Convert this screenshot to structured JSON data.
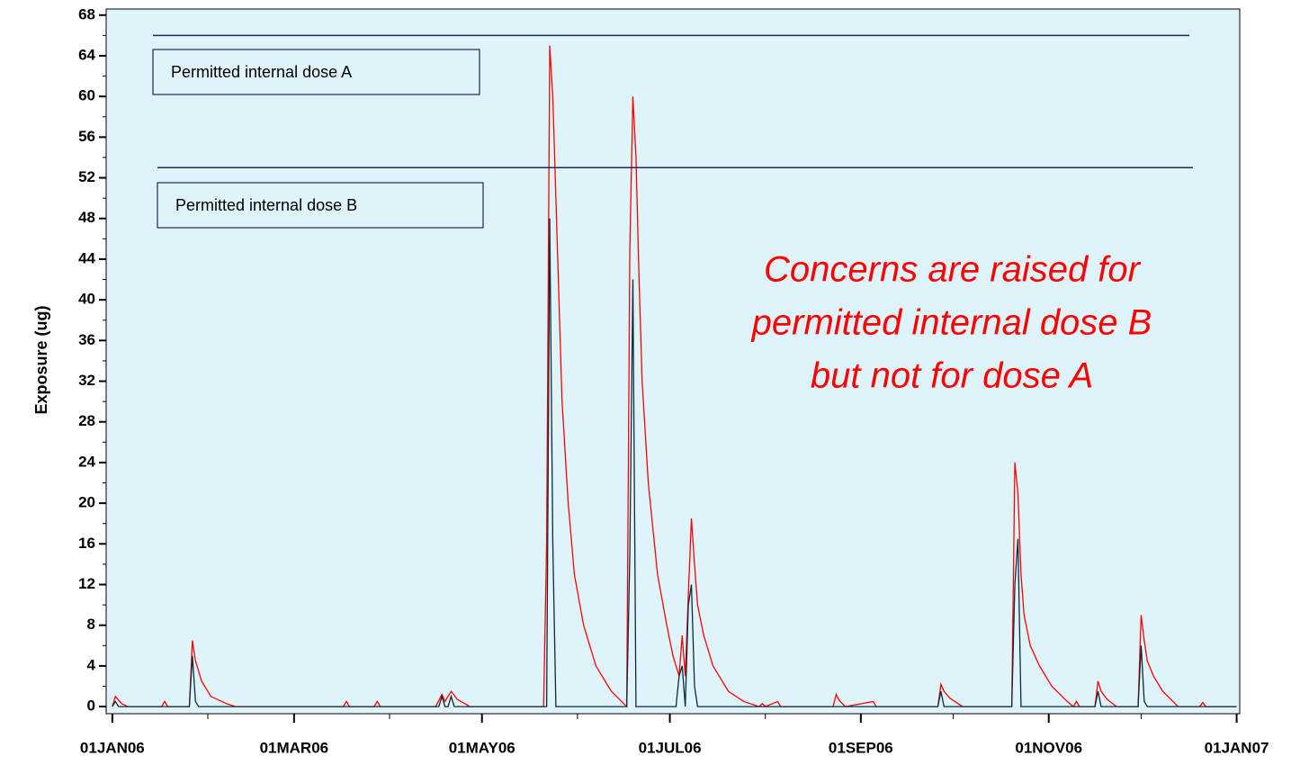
{
  "chart_data": {
    "type": "line",
    "y_label": "Exposure (ug)",
    "xlim": [
      "2005-12-30",
      "2007-01-02"
    ],
    "ylim": [
      -0.7,
      68.6
    ],
    "xticks": [
      {
        "value": "2006-01-01",
        "label": "01JAN06"
      },
      {
        "value": "2006-03-01",
        "label": "01MAR06"
      },
      {
        "value": "2006-05-01",
        "label": "01MAY06"
      },
      {
        "value": "2006-07-01",
        "label": "01JUL06"
      },
      {
        "value": "2006-09-01",
        "label": "01SEP06"
      },
      {
        "value": "2006-11-01",
        "label": "01NOV06"
      },
      {
        "value": "2007-01-01",
        "label": "01JAN07"
      }
    ],
    "xminorticks": [
      "2006-02-01",
      "2006-04-01",
      "2006-06-01",
      "2006-08-01",
      "2006-10-01",
      "2006-12-01"
    ],
    "yticks": [
      0,
      4,
      8,
      12,
      16,
      20,
      24,
      28,
      32,
      36,
      40,
      44,
      48,
      52,
      56,
      60,
      64,
      68
    ],
    "yminorticks": [
      2,
      6,
      10,
      14,
      18,
      22,
      26,
      30,
      34,
      38,
      42,
      46,
      50,
      54,
      58,
      62,
      66
    ],
    "background": "#dff3fb",
    "reference_lines": [
      {
        "label": "Permitted internal dose A",
        "value": 66,
        "color": "#1a2a5a"
      },
      {
        "label": "Permitted internal dose B",
        "value": 53,
        "color": "#1a2a5a"
      }
    ],
    "annotation": {
      "lines": [
        "Concerns are raised for",
        "permitted internal dose B",
        "but not for dose A"
      ],
      "color": "#ff0000"
    },
    "series": [
      {
        "color": "#ff0000",
        "x": [
          "2006-01-01",
          "2006-01-02",
          "2006-01-04",
          "2006-01-06",
          "2006-01-17",
          "2006-01-18",
          "2006-01-19",
          "2006-01-26",
          "2006-01-27",
          "2006-01-28",
          "2006-01-30",
          "2006-02-02",
          "2006-02-07",
          "2006-02-10",
          "2006-03-17",
          "2006-03-18",
          "2006-03-19",
          "2006-03-27",
          "2006-03-28",
          "2006-03-29",
          "2006-04-16",
          "2006-04-18",
          "2006-04-19",
          "2006-04-21",
          "2006-04-23",
          "2006-04-26",
          "2006-04-27",
          "2006-05-21",
          "2006-05-22",
          "2006-05-23",
          "2006-05-24",
          "2006-05-25",
          "2006-05-26",
          "2006-05-27",
          "2006-05-29",
          "2006-05-31",
          "2006-06-03",
          "2006-06-07",
          "2006-06-12",
          "2006-06-16",
          "2006-06-17",
          "2006-06-18",
          "2006-06-19",
          "2006-06-20",
          "2006-06-21",
          "2006-06-22",
          "2006-06-24",
          "2006-06-27",
          "2006-06-30",
          "2006-07-02",
          "2006-07-04",
          "2006-07-05",
          "2006-07-06",
          "2006-07-07",
          "2006-07-08",
          "2006-07-09",
          "2006-07-10",
          "2006-07-12",
          "2006-07-15",
          "2006-07-20",
          "2006-07-25",
          "2006-07-30",
          "2006-07-31",
          "2006-08-01",
          "2006-08-05",
          "2006-08-06",
          "2006-08-23",
          "2006-08-24",
          "2006-08-25",
          "2006-08-27",
          "2006-09-05",
          "2006-09-06",
          "2006-09-26",
          "2006-09-27",
          "2006-09-28",
          "2006-09-30",
          "2006-10-03",
          "2006-10-04",
          "2006-10-20",
          "2006-10-21",
          "2006-10-22",
          "2006-10-23",
          "2006-10-24",
          "2006-10-26",
          "2006-10-29",
          "2006-11-02",
          "2006-11-07",
          "2006-11-09",
          "2006-11-10",
          "2006-11-11",
          "2006-11-16",
          "2006-11-17",
          "2006-11-18",
          "2006-11-20",
          "2006-11-23",
          "2006-11-30",
          "2006-12-01",
          "2006-12-02",
          "2006-12-03",
          "2006-12-05",
          "2006-12-08",
          "2006-12-12",
          "2006-12-13",
          "2006-12-20",
          "2006-12-21",
          "2006-12-22",
          "2007-01-01"
        ],
        "values": [
          0,
          1,
          0.3,
          0,
          0,
          0.5,
          0,
          0,
          6.5,
          4.5,
          2.5,
          1,
          0.3,
          0,
          0,
          0.5,
          0,
          0,
          0.5,
          0,
          0,
          1.2,
          0.5,
          1.5,
          0.7,
          0.2,
          0,
          0,
          16,
          65,
          60,
          50,
          40,
          30,
          20,
          13,
          8,
          4,
          1.5,
          0.3,
          0,
          45,
          60,
          54,
          42,
          32,
          22,
          13,
          8,
          5,
          3,
          7,
          3,
          11,
          18.5,
          14,
          10,
          7,
          4,
          1.5,
          0.5,
          0,
          0.3,
          0,
          0.5,
          0,
          0,
          1.2,
          0.6,
          0,
          0.5,
          0,
          0,
          2.2,
          1.5,
          0.8,
          0.2,
          0,
          0,
          24,
          21,
          13,
          9,
          6,
          4,
          2,
          0.5,
          0,
          0.5,
          0,
          0,
          2.5,
          1.5,
          0.7,
          0,
          0,
          9,
          6.5,
          4.5,
          3,
          1.5,
          0.3,
          0,
          0,
          0.4,
          0,
          0
        ]
      },
      {
        "color": "#0d2b3a",
        "x": [
          "2006-01-01",
          "2006-01-02",
          "2006-01-03",
          "2006-01-26",
          "2006-01-27",
          "2006-01-28",
          "2006-01-29",
          "2006-04-17",
          "2006-04-18",
          "2006-04-19",
          "2006-04-20",
          "2006-04-21",
          "2006-04-22",
          "2006-05-22",
          "2006-05-23",
          "2006-05-24",
          "2006-05-25",
          "2006-06-17",
          "2006-06-18",
          "2006-06-19",
          "2006-06-20",
          "2006-07-03",
          "2006-07-04",
          "2006-07-05",
          "2006-07-06",
          "2006-07-07",
          "2006-07-08",
          "2006-07-09",
          "2006-07-10",
          "2006-09-26",
          "2006-09-27",
          "2006-09-28",
          "2006-10-20",
          "2006-10-21",
          "2006-10-22",
          "2006-10-23",
          "2006-11-16",
          "2006-11-17",
          "2006-11-18",
          "2006-11-30",
          "2006-12-01",
          "2006-12-02",
          "2006-12-03",
          "2007-01-01"
        ],
        "values": [
          0,
          0.5,
          0,
          0,
          5,
          0.5,
          0,
          0,
          1,
          0,
          0,
          1,
          0,
          0,
          48,
          16,
          0,
          0,
          15,
          42,
          0,
          0,
          3,
          4,
          0,
          10,
          12,
          2,
          0,
          0,
          1.5,
          0,
          0,
          12,
          16.5,
          0,
          0,
          1.5,
          0,
          0,
          6,
          0.5,
          0,
          0
        ]
      }
    ]
  }
}
